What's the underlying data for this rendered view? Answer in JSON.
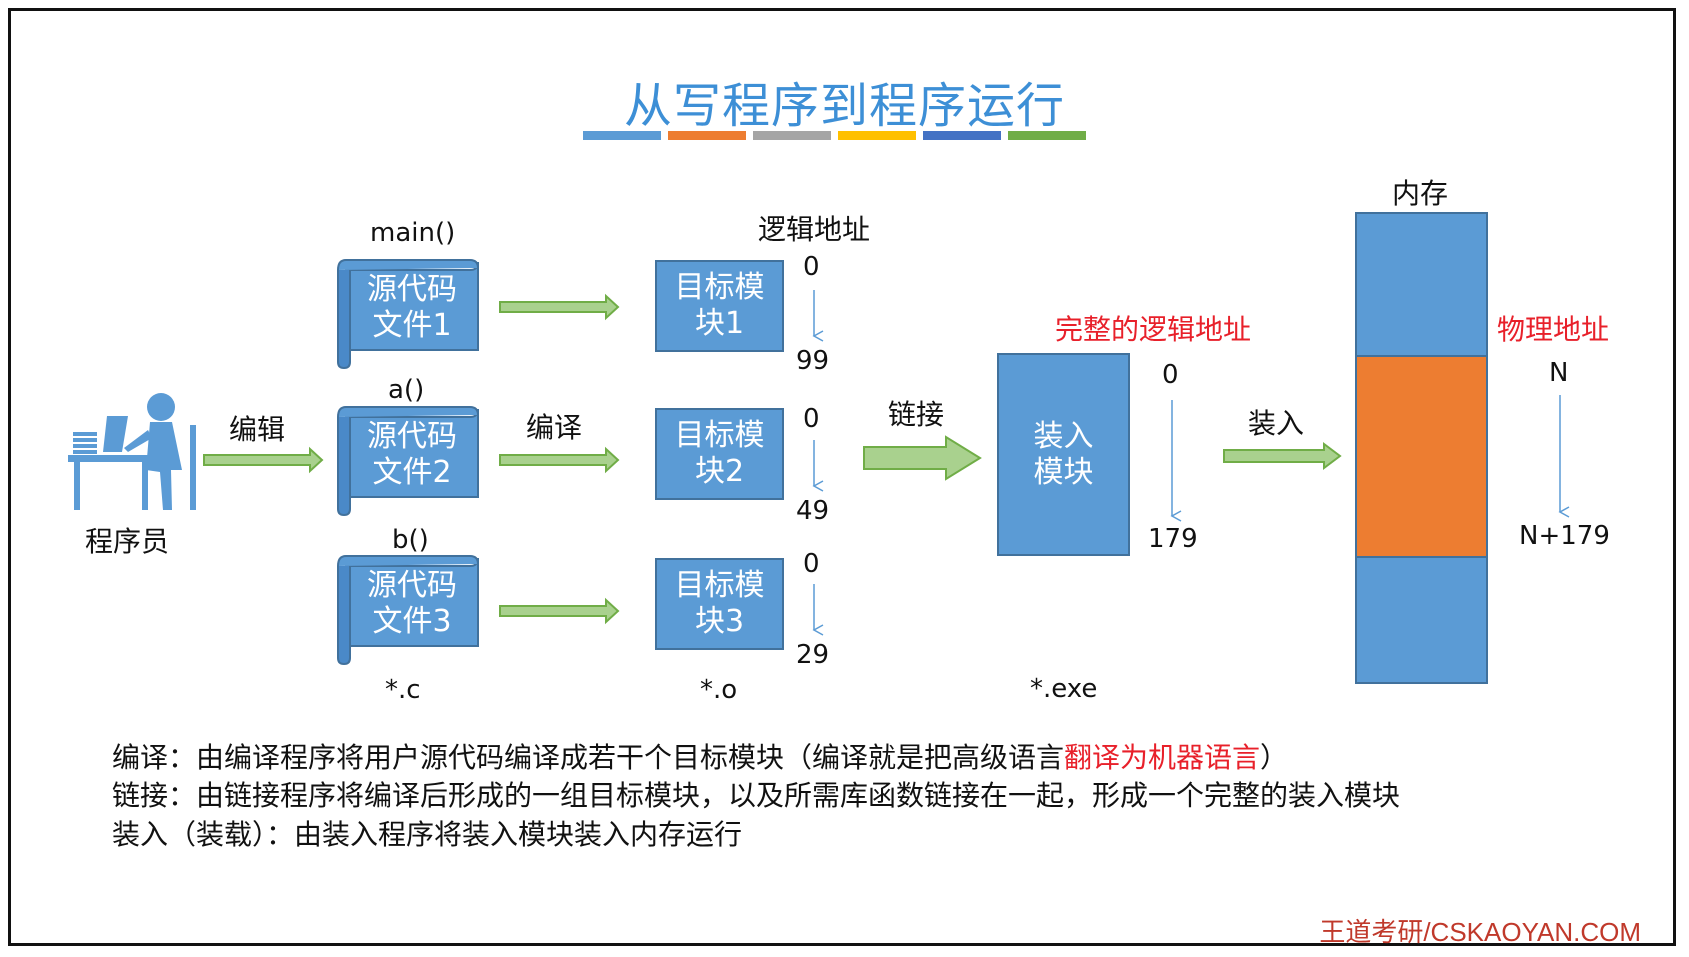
{
  "title": "从写程序到程序运行",
  "title_bar_colors": [
    "#5b9bd5",
    "#ed7d31",
    "#a5a5a5",
    "#ffc000",
    "#4472c4",
    "#70ad47"
  ],
  "programmer": {
    "label": "程序员"
  },
  "edit_label": "编辑",
  "compile_label": "编译",
  "link_label": "链接",
  "load_label": "装入",
  "sources": [
    {
      "func": "main()",
      "line1": "源代码",
      "line2": "文件1"
    },
    {
      "func": "a()",
      "line1": "源代码",
      "line2": "文件2"
    },
    {
      "func": "b()",
      "line1": "源代码",
      "line2": "文件3"
    }
  ],
  "source_ext": "*.c",
  "logical_address_label": "逻辑地址",
  "modules": [
    {
      "line1": "目标模",
      "line2": "块1",
      "start": "0",
      "end": "99"
    },
    {
      "line1": "目标模",
      "line2": "块2",
      "start": "0",
      "end": "49"
    },
    {
      "line1": "目标模",
      "line2": "块3",
      "start": "0",
      "end": "29"
    }
  ],
  "module_ext": "*.o",
  "complete_logical_label": "完整的逻辑地址",
  "load_module": {
    "line1": "装入",
    "line2": "模块",
    "start": "0",
    "end": "179"
  },
  "load_ext": "*.exe",
  "memory": {
    "label": "内存",
    "physical_label": "物理地址",
    "start": "N",
    "end": "N+179",
    "colors": {
      "free": "#5b9bd5",
      "used": "#ed7d31"
    }
  },
  "descriptions": {
    "compile_prefix": "编译：由编译程序将用户源代码编译成若干个目标模块（编译就是把高级语言",
    "compile_highlight": "翻译为机器语言",
    "compile_suffix": "）",
    "link": "链接：由链接程序将编译后形成的一组目标模块，以及所需库函数链接在一起，形成一个完整的装入模块",
    "load": "装入（装载）：由装入程序将装入模块装入内存运行"
  },
  "footer": "王道考研/CSKAOYAN.COM"
}
